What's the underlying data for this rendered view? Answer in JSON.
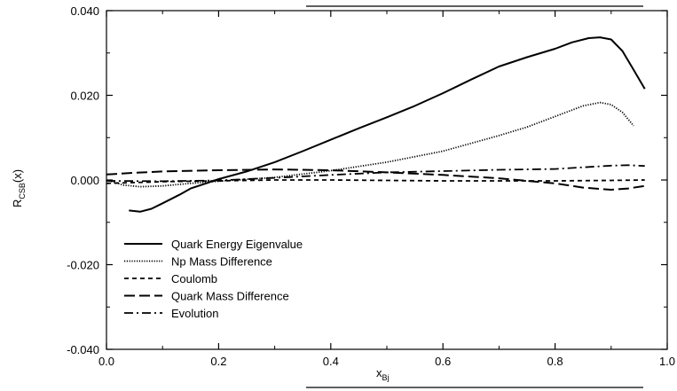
{
  "chart_data": {
    "type": "line",
    "xlabel": "x",
    "xlabel_sub": "Bj",
    "ylabel": "R",
    "ylabel_sub": "CSB",
    "ylabel_suffix": "(x)",
    "xlim": [
      0.0,
      1.0
    ],
    "ylim": [
      -0.04,
      0.04
    ],
    "x_ticks": [
      "0.0",
      "0.2",
      "0.4",
      "0.6",
      "0.8",
      "1.0"
    ],
    "y_ticks": [
      "-0.040",
      "-0.020",
      "0.000",
      "0.020",
      "0.040"
    ],
    "legend_position": "bottom-left",
    "series": [
      {
        "name": "Quark Energy Eigenvalue",
        "dash": "solid",
        "x": [
          0.04,
          0.06,
          0.08,
          0.1,
          0.13,
          0.15,
          0.18,
          0.2,
          0.25,
          0.3,
          0.35,
          0.4,
          0.45,
          0.5,
          0.55,
          0.6,
          0.65,
          0.7,
          0.75,
          0.8,
          0.83,
          0.86,
          0.88,
          0.9,
          0.92,
          0.94,
          0.96
        ],
        "y": [
          -0.0072,
          -0.0075,
          -0.0068,
          -0.0055,
          -0.0035,
          -0.002,
          -0.0007,
          0.0002,
          0.002,
          0.0042,
          0.0068,
          0.0095,
          0.0122,
          0.0148,
          0.0175,
          0.0205,
          0.0237,
          0.0268,
          0.029,
          0.031,
          0.0325,
          0.0335,
          0.0337,
          0.0332,
          0.0305,
          0.026,
          0.0215
        ]
      },
      {
        "name": "Np Mass Difference",
        "dash": "dotted",
        "x": [
          0.0,
          0.03,
          0.06,
          0.1,
          0.15,
          0.2,
          0.3,
          0.4,
          0.5,
          0.6,
          0.7,
          0.75,
          0.8,
          0.85,
          0.88,
          0.9,
          0.92,
          0.94
        ],
        "y": [
          0.0,
          -0.0012,
          -0.0016,
          -0.0014,
          -0.0008,
          -0.0003,
          0.0006,
          0.0022,
          0.0042,
          0.0068,
          0.0105,
          0.0125,
          0.015,
          0.0175,
          0.0183,
          0.0178,
          0.016,
          0.0128
        ]
      },
      {
        "name": "Coulomb",
        "dash": "dashed",
        "x": [
          0.0,
          0.05,
          0.1,
          0.2,
          0.3,
          0.4,
          0.5,
          0.6,
          0.7,
          0.8,
          0.9,
          0.96
        ],
        "y": [
          -0.0008,
          -0.0006,
          -0.0004,
          -0.0002,
          0.0,
          0.0,
          -0.0001,
          -0.0002,
          -0.0002,
          -0.0002,
          -0.0001,
          0.0
        ]
      },
      {
        "name": "Quark Mass Difference",
        "dash": "long-dashed",
        "x": [
          0.0,
          0.05,
          0.1,
          0.2,
          0.3,
          0.4,
          0.5,
          0.6,
          0.7,
          0.75,
          0.8,
          0.85,
          0.9,
          0.93,
          0.96
        ],
        "y": [
          0.0013,
          0.0017,
          0.002,
          0.0023,
          0.0025,
          0.0023,
          0.0018,
          0.0012,
          0.0004,
          -0.0002,
          -0.0008,
          -0.0018,
          -0.0023,
          -0.002,
          -0.0014
        ]
      },
      {
        "name": "Evolution",
        "dash": "dash-dot",
        "x": [
          0.0,
          0.1,
          0.2,
          0.3,
          0.4,
          0.5,
          0.6,
          0.7,
          0.8,
          0.85,
          0.9,
          0.93,
          0.96
        ],
        "y": [
          -0.0002,
          -0.0003,
          -0.0001,
          0.0005,
          0.0012,
          0.0018,
          0.0021,
          0.0024,
          0.0026,
          0.003,
          0.0034,
          0.0035,
          0.0033
        ]
      }
    ]
  }
}
